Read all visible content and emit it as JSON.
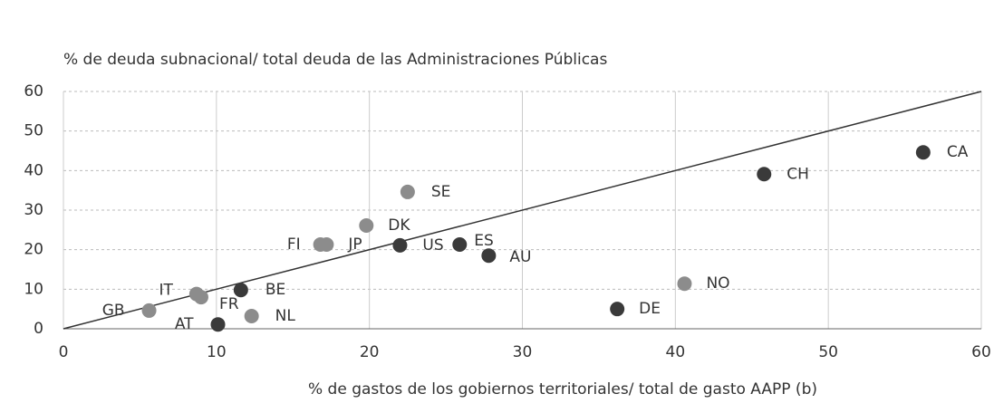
{
  "chart_data": {
    "type": "scatter",
    "title": "% de deuda subnacional/ total deuda de las Administraciones Públicas",
    "x_label": "% de gastos de los gobiernos territoriales/ total de gasto AAPP (b)",
    "labels": [
      "CA",
      "CH",
      "SE",
      "DK",
      "FI",
      "JP",
      "US",
      "ES",
      "AU",
      "NO",
      "DE",
      "BE",
      "IT",
      "FR",
      "GB",
      "AT",
      "NL"
    ],
    "x": [
      56.2,
      45.8,
      22.5,
      19.8,
      16.8,
      17.2,
      22.0,
      25.9,
      27.8,
      40.6,
      36.2,
      11.6,
      8.7,
      9.0,
      5.6,
      10.1,
      12.3
    ],
    "values": [
      44.6,
      39.1,
      34.6,
      26.1,
      21.3,
      21.3,
      21.1,
      21.3,
      18.5,
      11.4,
      5.0,
      9.8,
      8.8,
      8.0,
      4.6,
      1.1,
      3.2
    ],
    "colors": [
      "#3a3a3a",
      "#3a3a3a",
      "#8c8c8c",
      "#8c8c8c",
      "#8c8c8c",
      "#8c8c8c",
      "#3a3a3a",
      "#3a3a3a",
      "#3a3a3a",
      "#8c8c8c",
      "#3a3a3a",
      "#3a3a3a",
      "#8c8c8c",
      "#8c8c8c",
      "#8c8c8c",
      "#3a3a3a",
      "#8c8c8c"
    ],
    "xlim": [
      0,
      60
    ],
    "ylim": [
      0,
      60
    ],
    "xticks": [
      0,
      10,
      20,
      30,
      40,
      50,
      60
    ],
    "yticks": [
      0,
      10,
      20,
      30,
      40,
      50,
      60
    ],
    "grid": true,
    "identity_line": true
  }
}
